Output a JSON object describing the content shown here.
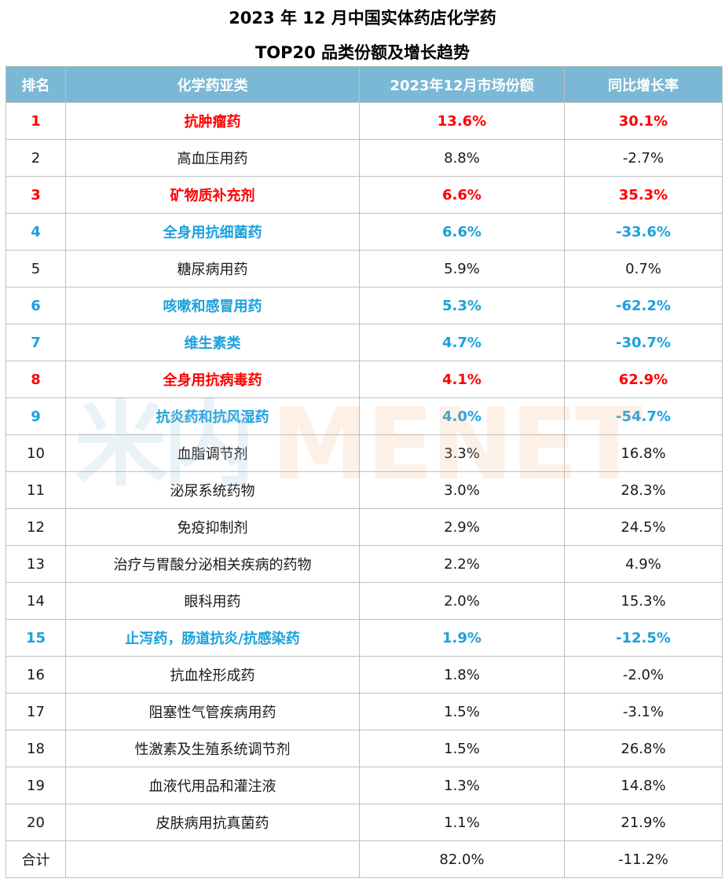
{
  "title": {
    "line1": "2023 年 12 月中国实体药店化学药",
    "line2": "TOP20 品类份额及增长趋势"
  },
  "watermark": {
    "left_text": "米内",
    "right_text": "MENET"
  },
  "colors": {
    "header_bg": "#7ab8d6",
    "highlight_red": "#ff0000",
    "highlight_blue": "#1ba1dc"
  },
  "table": {
    "headers": [
      "排名",
      "化学药亚类",
      "2023年12月市场份额",
      "同比增长率"
    ],
    "rows": [
      {
        "rank": "1",
        "category": "抗肿瘤药",
        "share": "13.6%",
        "growth": "30.1%",
        "highlight": "red"
      },
      {
        "rank": "2",
        "category": "高血压用药",
        "share": "8.8%",
        "growth": "-2.7%",
        "highlight": "none"
      },
      {
        "rank": "3",
        "category": "矿物质补充剂",
        "share": "6.6%",
        "growth": "35.3%",
        "highlight": "red"
      },
      {
        "rank": "4",
        "category": "全身用抗细菌药",
        "share": "6.6%",
        "growth": "-33.6%",
        "highlight": "blue"
      },
      {
        "rank": "5",
        "category": "糖尿病用药",
        "share": "5.9%",
        "growth": "0.7%",
        "highlight": "none"
      },
      {
        "rank": "6",
        "category": "咳嗽和感冒用药",
        "share": "5.3%",
        "growth": "-62.2%",
        "highlight": "blue"
      },
      {
        "rank": "7",
        "category": "维生素类",
        "share": "4.7%",
        "growth": "-30.7%",
        "highlight": "blue"
      },
      {
        "rank": "8",
        "category": "全身用抗病毒药",
        "share": "4.1%",
        "growth": "62.9%",
        "highlight": "red"
      },
      {
        "rank": "9",
        "category": "抗炎药和抗风湿药",
        "share": "4.0%",
        "growth": "-54.7%",
        "highlight": "blue"
      },
      {
        "rank": "10",
        "category": "血脂调节剂",
        "share": "3.3%",
        "growth": "16.8%",
        "highlight": "none"
      },
      {
        "rank": "11",
        "category": "泌尿系统药物",
        "share": "3.0%",
        "growth": "28.3%",
        "highlight": "none"
      },
      {
        "rank": "12",
        "category": "免疫抑制剂",
        "share": "2.9%",
        "growth": "24.5%",
        "highlight": "none"
      },
      {
        "rank": "13",
        "category": "治疗与胃酸分泌相关疾病的药物",
        "share": "2.2%",
        "growth": "4.9%",
        "highlight": "none"
      },
      {
        "rank": "14",
        "category": "眼科用药",
        "share": "2.0%",
        "growth": "15.3%",
        "highlight": "none"
      },
      {
        "rank": "15",
        "category": "止泻药，肠道抗炎/抗感染药",
        "share": "1.9%",
        "growth": "-12.5%",
        "highlight": "blue"
      },
      {
        "rank": "16",
        "category": "抗血栓形成药",
        "share": "1.8%",
        "growth": "-2.0%",
        "highlight": "none"
      },
      {
        "rank": "17",
        "category": "阻塞性气管疾病用药",
        "share": "1.5%",
        "growth": "-3.1%",
        "highlight": "none"
      },
      {
        "rank": "18",
        "category": "性激素及生殖系统调节剂",
        "share": "1.5%",
        "growth": "26.8%",
        "highlight": "none"
      },
      {
        "rank": "19",
        "category": "血液代用品和灌注液",
        "share": "1.3%",
        "growth": "14.8%",
        "highlight": "none"
      },
      {
        "rank": "20",
        "category": "皮肤病用抗真菌药",
        "share": "1.1%",
        "growth": "21.9%",
        "highlight": "none"
      }
    ],
    "total": {
      "label": "合计",
      "category": "",
      "share": "82.0%",
      "growth": "-11.2%"
    }
  }
}
